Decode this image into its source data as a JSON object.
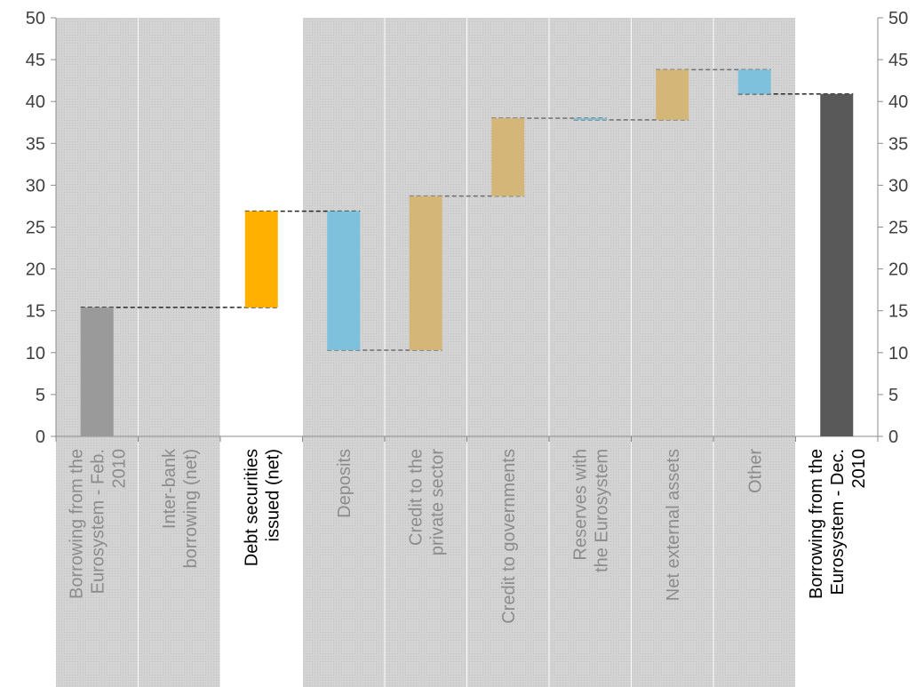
{
  "chart_data": {
    "type": "bar",
    "subtype": "waterfall",
    "categories": [
      [
        "Borrowing from the",
        "Eurosystem - Feb.",
        "2010"
      ],
      [
        "Inter-bank",
        "borrowing (net)"
      ],
      [
        "Debt securities",
        "issued (net)"
      ],
      [
        "Deposits"
      ],
      [
        "Credit to the",
        "private sector"
      ],
      [
        "Credit to governments"
      ],
      [
        "Reserves with",
        "the Eurosystem"
      ],
      [
        "Net external assets"
      ],
      [
        "Other"
      ],
      [
        "Borrowing from the",
        "Eurosystem - Dec.",
        "2010"
      ]
    ],
    "bars": [
      {
        "bottom": 0,
        "top": 15.4,
        "kind": "total-start"
      },
      {
        "bottom": 15.4,
        "top": 15.4,
        "kind": "none"
      },
      {
        "bottom": 15.4,
        "top": 26.9,
        "kind": "increase-highlight"
      },
      {
        "bottom": 10.3,
        "top": 26.9,
        "kind": "decrease"
      },
      {
        "bottom": 10.3,
        "top": 28.7,
        "kind": "increase"
      },
      {
        "bottom": 28.7,
        "top": 38.0,
        "kind": "increase"
      },
      {
        "bottom": 37.8,
        "top": 38.0,
        "kind": "decrease"
      },
      {
        "bottom": 37.8,
        "top": 43.8,
        "kind": "increase"
      },
      {
        "bottom": 40.9,
        "top": 43.8,
        "kind": "decrease"
      },
      {
        "bottom": 0,
        "top": 40.9,
        "kind": "total-end"
      }
    ],
    "highlighted_columns": [
      2,
      9
    ],
    "yticks": [
      "0",
      "5",
      "10",
      "15",
      "20",
      "25",
      "30",
      "35",
      "40",
      "45",
      "50"
    ],
    "ylim": [
      0,
      50
    ],
    "secondary_y_axis": true,
    "grid": false,
    "legend": "none",
    "colors": {
      "total_start": "#9a9a9a",
      "total_end": "#595959",
      "increase": "#d4b679",
      "increase_highlight": "#ffb000",
      "decrease": "#7ec1dd",
      "shaded_background": "#d6d6d6",
      "muted_label": "#8c8c8c",
      "highlight_label": "#000000",
      "connector": "#595959"
    }
  }
}
